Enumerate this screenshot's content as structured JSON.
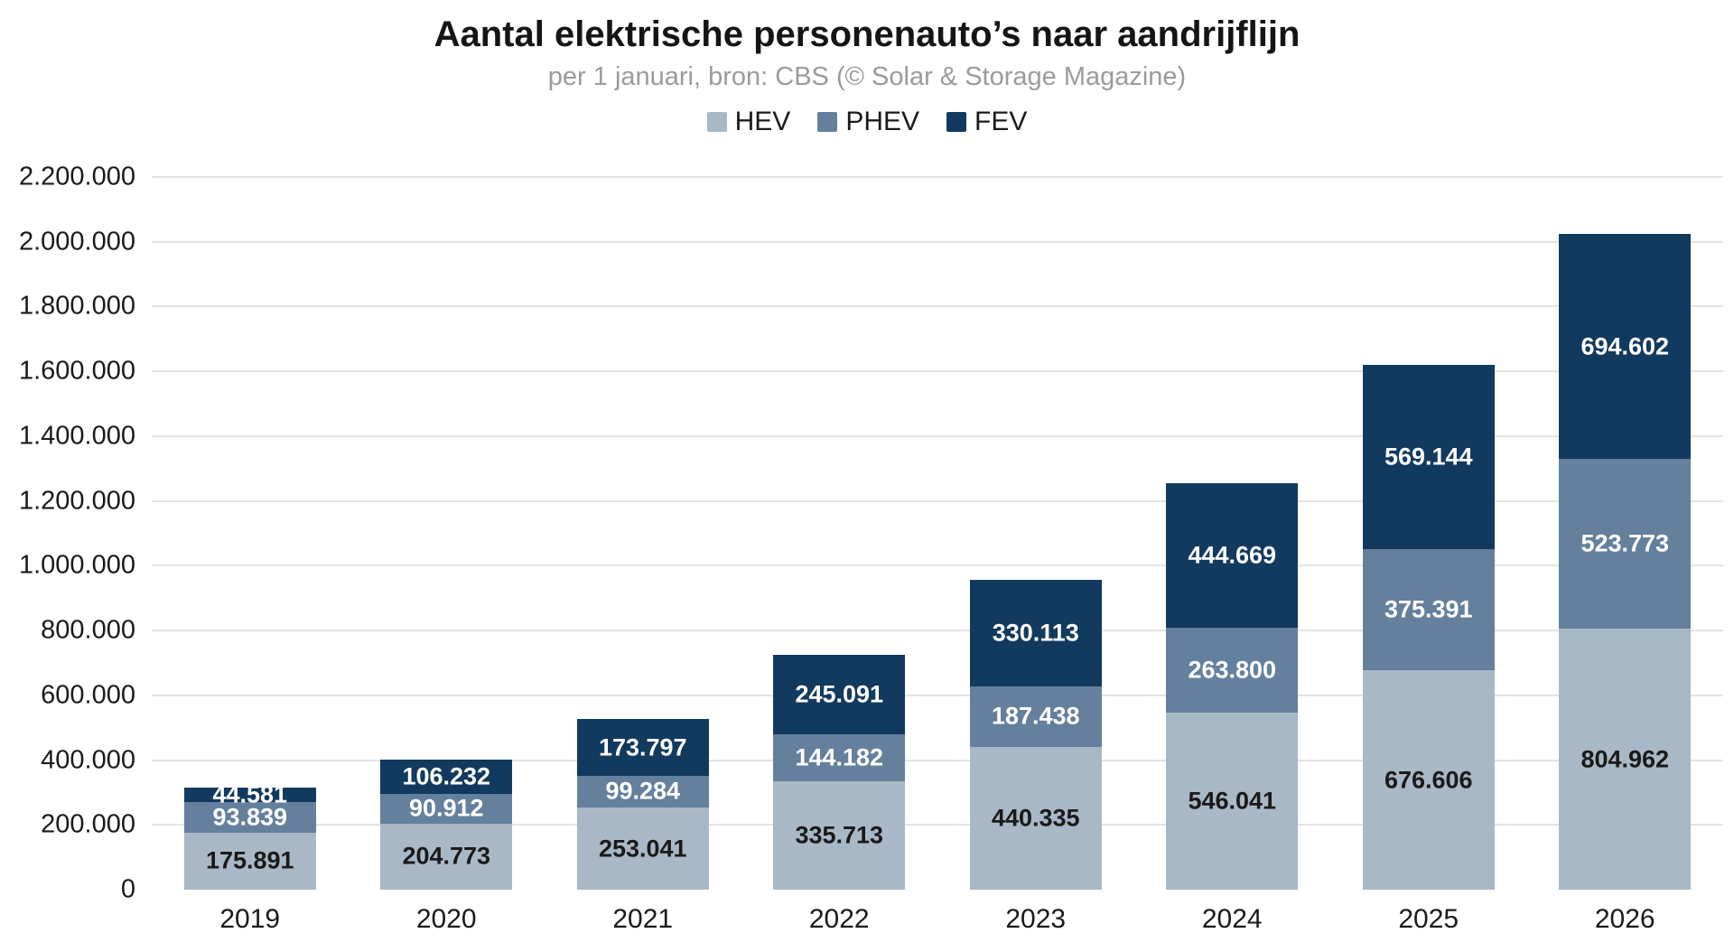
{
  "chart_data": {
    "type": "bar",
    "stacked": true,
    "title": "Aantal elektrische personenauto’s naar aandrijflijn",
    "subtitle": "per 1 januari, bron: CBS (© Solar & Storage Magazine)",
    "categories": [
      "2019",
      "2020",
      "2021",
      "2022",
      "2023",
      "2024",
      "2025",
      "2026"
    ],
    "series": [
      {
        "name": "HEV",
        "color": "#a9b8c7",
        "label_color": "#1a1a1a",
        "values": [
          175891,
          204773,
          253041,
          335713,
          440335,
          546041,
          676606,
          804962
        ]
      },
      {
        "name": "PHEV",
        "color": "#64809d",
        "label_color": "#ffffff",
        "values": [
          93839,
          90912,
          99284,
          144182,
          187438,
          263800,
          375391,
          523773
        ]
      },
      {
        "name": "FEV",
        "color": "#123a5e",
        "label_color": "#ffffff",
        "values": [
          44581,
          106232,
          173797,
          245091,
          330113,
          444669,
          569144,
          694602
        ]
      }
    ],
    "xlabel": "",
    "ylabel": "",
    "ylim": [
      0,
      2200000
    ],
    "ytick_step": 200000,
    "ytick_labels": [
      "0",
      "200.000",
      "400.000",
      "600.000",
      "800.000",
      "1.000.000",
      "1.200.000",
      "1.400.000",
      "1.600.000",
      "1.800.000",
      "2.000.000",
      "2.200.000"
    ],
    "grid": true,
    "gridline_color": "#e4e4e4",
    "legend_position": "top",
    "number_format": "thousands-dot"
  }
}
